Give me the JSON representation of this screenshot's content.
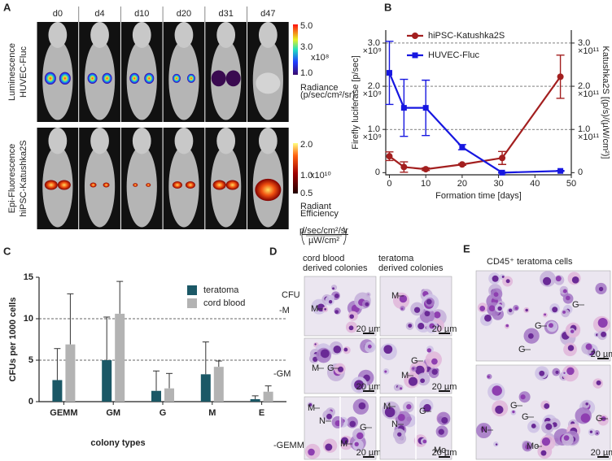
{
  "panel_a": {
    "label": "A",
    "days": [
      "d0",
      "d4",
      "d10",
      "d20",
      "d31",
      "d47"
    ],
    "rows": [
      {
        "lines": [
          "Luminescence",
          "HUVEC-Fluc"
        ]
      },
      {
        "lines": [
          "Epi-Fluorescence",
          "hiPSC-Katushka2S"
        ]
      }
    ],
    "colorbars": [
      {
        "ticks": [
          "5.0",
          "3.0",
          "1.0"
        ],
        "exponent": "x10⁸",
        "title": [
          "Radiance",
          "(p/sec/cm²/sr)"
        ]
      },
      {
        "ticks": [
          "2.0",
          "1.0",
          "0.5"
        ],
        "exponent": "x10¹⁰",
        "title": [
          "Radiant",
          "Efficiency"
        ],
        "unit_numerator": "p/sec/cm²/sr",
        "unit_denominator": "µW/cm²"
      }
    ]
  },
  "chart_data": [
    {
      "type": "line",
      "panel_label": "B",
      "xlabel": "Formation time [days]",
      "ylabel": "Firefly luciferase [p/sec]",
      "y2label": "Katushka2S [(p/s)/(µW/cm²)]",
      "y_exponent": "×10⁹",
      "y2_exponent": "×10¹¹",
      "x": [
        0,
        4,
        10,
        20,
        31,
        47
      ],
      "xlim": [
        -1,
        50
      ],
      "xticks": [
        0,
        10,
        20,
        30,
        40,
        50
      ],
      "ylim": [
        -0.05,
        3.3
      ],
      "yticks": [
        0,
        {
          "value": 1,
          "label": "1.0"
        },
        {
          "value": 2,
          "label": "2.0"
        },
        {
          "value": 3,
          "label": "3.0"
        }
      ],
      "y2lim": [
        -0.05,
        3.3
      ],
      "y2ticks": [
        0,
        {
          "value": 1,
          "label": "1.0"
        },
        {
          "value": 2,
          "label": "2.0"
        },
        {
          "value": 3,
          "label": "3.0"
        }
      ],
      "grid": true,
      "legend": "upper right",
      "series": [
        {
          "name": "hiPSC-Katushka2S",
          "color": "#a31f1f",
          "axis": "y2",
          "marker": "circle",
          "values": [
            0.38,
            0.13,
            0.08,
            0.19,
            0.34,
            2.22
          ],
          "errors": [
            0.1,
            0.12,
            0.03,
            0.02,
            0.15,
            0.5
          ]
        },
        {
          "name": "HUVEC-Fluc",
          "color": "#1717e0",
          "marker": "square",
          "values": [
            2.31,
            1.5,
            1.5,
            0.59,
            0,
            0.04
          ],
          "errors": [
            0.73,
            0.66,
            0.64,
            0.06,
            0.01,
            0.01
          ]
        }
      ]
    },
    {
      "type": "bar",
      "panel_label": "C",
      "xlabel": "colony types",
      "ylabel": "CFUs per 1000 cells",
      "categories": [
        "GEMM",
        "GM",
        "G",
        "M",
        "E"
      ],
      "ylim": [
        0,
        15
      ],
      "yticks": [
        0,
        5,
        10,
        15
      ],
      "grid": true,
      "legend": "upper right",
      "series": [
        {
          "name": "teratoma",
          "color": "#1b5866",
          "values": [
            2.6,
            5.0,
            1.3,
            3.3,
            0.3
          ],
          "errors": [
            3.8,
            5.2,
            2.4,
            3.9,
            0.4
          ]
        },
        {
          "name": "cord blood",
          "color": "#b3b3b3",
          "values": [
            6.9,
            10.6,
            1.6,
            4.2,
            1.2
          ],
          "errors": [
            6.1,
            3.9,
            1.8,
            0.7,
            0.7
          ]
        }
      ]
    }
  ],
  "panel_d": {
    "label": "D",
    "columns": [
      [
        "cord blood",
        "derived colonies"
      ],
      [
        "teratoma",
        "derived colonies"
      ]
    ],
    "row_header": "CFU",
    "rows": [
      "-M",
      "-GM",
      "-GEMM"
    ],
    "scale_bar": "20 µm",
    "images": [
      {
        "annotations": [
          "M"
        ]
      },
      {
        "annotations": [
          "M"
        ]
      },
      {
        "annotations": [
          "M",
          "G"
        ]
      },
      {
        "annotations": [
          "G",
          "M"
        ]
      },
      {
        "annotations": [
          "M",
          "N",
          "M",
          "G"
        ]
      },
      {
        "annotations": [
          "M",
          "N",
          "G",
          "Mo"
        ]
      }
    ]
  },
  "panel_e": {
    "label": "E",
    "title": "CD45⁺ teratoma cells",
    "scale_bar": "20 µm",
    "images": [
      {
        "annotations": [
          "G",
          "G",
          "G"
        ]
      },
      {
        "annotations": [
          "G",
          "G",
          "N",
          "Mo",
          "G"
        ]
      }
    ]
  }
}
